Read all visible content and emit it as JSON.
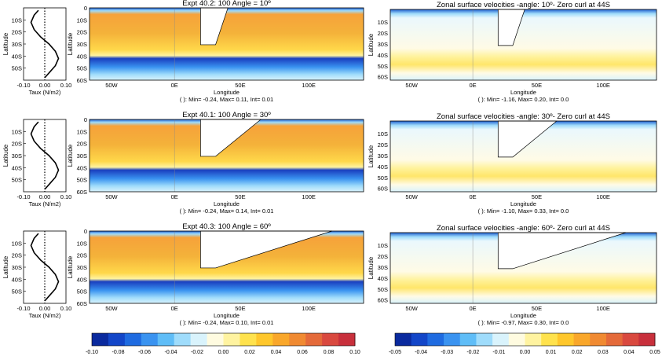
{
  "taux_panels": {
    "ylabel": "Latitude",
    "xlabel": "Taux (N/m2)",
    "xticks": [
      "-0.10",
      "0.00",
      "0.10"
    ],
    "yticks": [
      "10S",
      "20S",
      "30S",
      "40S",
      "50S"
    ]
  },
  "map_common": {
    "xlabel": "Longitude",
    "ylabel": "Latitude",
    "xticks": [
      "50W",
      "0E",
      "50E",
      "100E"
    ]
  },
  "left_yticks": [
    "0",
    "10S",
    "20S",
    "30S",
    "40S",
    "50S",
    "60S"
  ],
  "right_yticks": [
    "10S",
    "20S",
    "30S",
    "40S",
    "50S",
    "60S"
  ],
  "rows": [
    {
      "left_title": "Expt 40.2: 100 Angle = 10º",
      "left_stats": "( ): Min= -0.24, Max= 0.11, Int= 0.01",
      "right_title": "Zonal surface velocities -angle: 10º- Zero curl at 44S",
      "right_stats": "( ): Min= -1.16, Max= 0.20, Int= 0.0"
    },
    {
      "left_title": "Expt 40.1: 100 Angle = 30º",
      "left_stats": "( ): Min= -0.24, Max= 0.14, Int= 0.01",
      "right_title": "Zonal surface velocities -angle: 30º- Zero curl at 44S",
      "right_stats": "( ): Min= -1.10, Max= 0.33, Int= 0.0"
    },
    {
      "left_title": "Expt 40.3: 100 Angle = 60º",
      "left_stats": "( ): Min= -0.24, Max= 0.10, Int= 0.01",
      "right_title": "Zonal surface velocities -angle: 60º- Zero curl at 44S",
      "right_stats": "( ): Min= -0.97, Max= 0.30, Int= 0.0"
    }
  ],
  "chart_data": [
    {
      "type": "line",
      "panel": "wind-stress profile (rows 1-3, identical)",
      "xlabel": "Taux (N/m2)",
      "ylabel": "Latitude",
      "xlim": [
        -0.1,
        0.1
      ],
      "ylim": [
        -60,
        0
      ],
      "series": [
        {
          "x": [
            -0.03,
            -0.05,
            -0.065,
            -0.05,
            -0.02,
            0.02,
            0.05,
            0.065,
            0.05,
            0.02,
            0.0
          ],
          "y": [
            -2,
            -6,
            -12,
            -18,
            -24,
            -30,
            -36,
            -42,
            -48,
            -54,
            -58
          ]
        }
      ]
    },
    {
      "type": "heatmap",
      "panel": "transport maps (left column)",
      "colorbar_ticks": [
        -0.1,
        -0.08,
        -0.06,
        -0.04,
        -0.02,
        0.0,
        0.02,
        0.04,
        0.06,
        0.08,
        0.1
      ],
      "colorbar_tick_labels": [
        "-0.10",
        "-0.08",
        "-0.06",
        "-0.04",
        "-0.02",
        "0.00",
        "0.02",
        "0.04",
        "0.06",
        "0.08",
        "0.10"
      ],
      "colors": [
        "#0a2a9e",
        "#1346c8",
        "#1f6be0",
        "#3a93f0",
        "#5fbdf7",
        "#9fdcfb",
        "#d9f3fc",
        "#fffbe0",
        "#fff3a0",
        "#ffe24d",
        "#ffc72c",
        "#f9a72b",
        "#f08a32",
        "#e46a3a",
        "#d9493f",
        "#c8303c"
      ]
    },
    {
      "type": "heatmap",
      "panel": "zonal surface velocity maps (right column)",
      "colorbar_ticks": [
        -0.05,
        -0.04,
        -0.03,
        -0.02,
        -0.01,
        0.0,
        0.01,
        0.02,
        0.03,
        0.04,
        0.05
      ],
      "colorbar_tick_labels": [
        "-0.05",
        "-0.04",
        "-0.03",
        "-0.02",
        "-0.01",
        "0.00",
        "0.01",
        "0.02",
        "0.03",
        "0.04",
        "0.05"
      ],
      "colors": [
        "#0a2a9e",
        "#1346c8",
        "#1f6be0",
        "#3a93f0",
        "#5fbdf7",
        "#9fdcfb",
        "#d9f3fc",
        "#fffbe0",
        "#fff3a0",
        "#ffe24d",
        "#ffc72c",
        "#f9a72b",
        "#f08a32",
        "#e46a3a",
        "#d9493f",
        "#c8303c"
      ]
    }
  ]
}
